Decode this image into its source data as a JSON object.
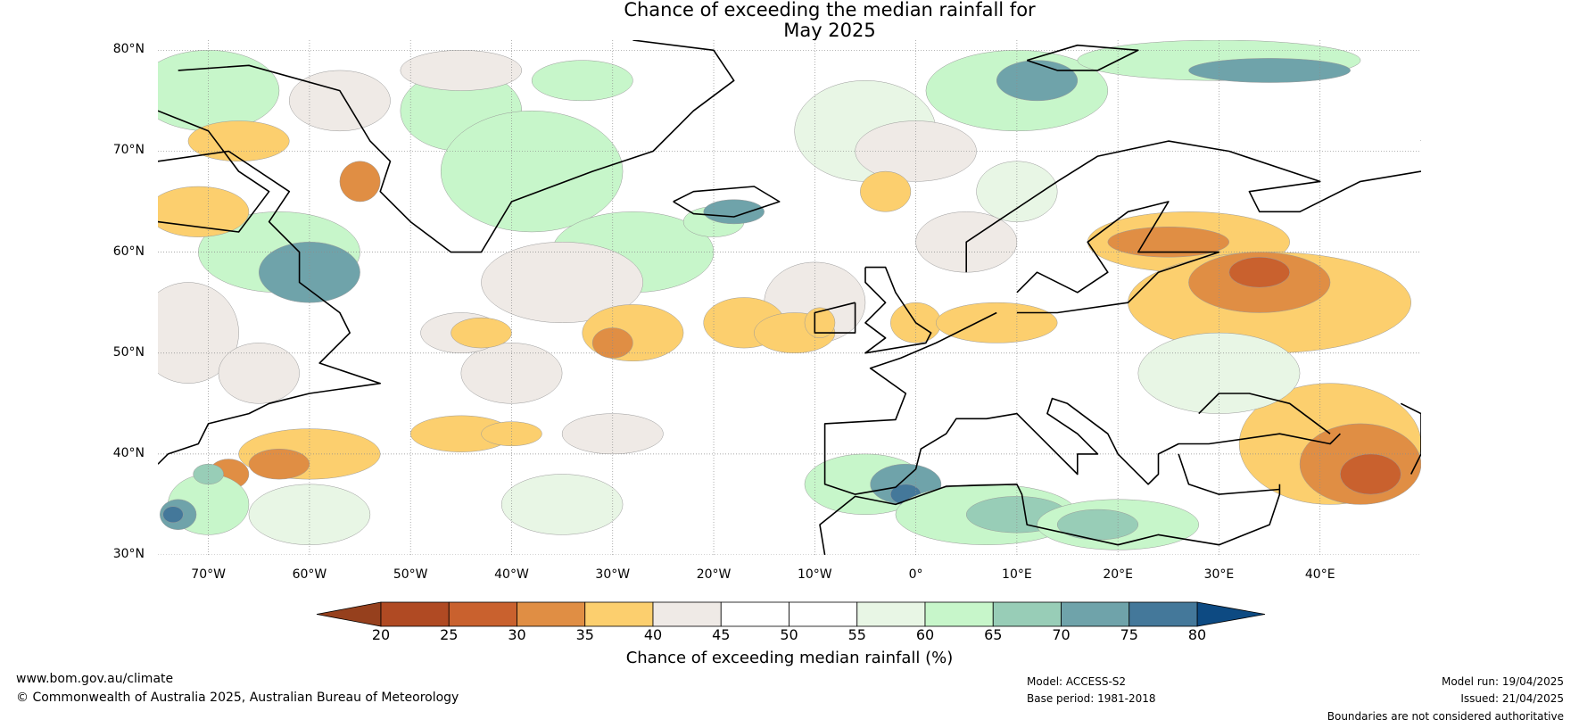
{
  "title_line1": "Chance of exceeding the median rainfall for",
  "title_line2": "May 2025",
  "lat_ticks": [
    {
      "lat": 80,
      "label": "80°N"
    },
    {
      "lat": 70,
      "label": "70°N"
    },
    {
      "lat": 60,
      "label": "60°N"
    },
    {
      "lat": 50,
      "label": "50°N"
    },
    {
      "lat": 40,
      "label": "40°N"
    },
    {
      "lat": 30,
      "label": "30°N"
    }
  ],
  "lon_ticks": [
    {
      "lon": -70,
      "label": "70°W"
    },
    {
      "lon": -60,
      "label": "60°W"
    },
    {
      "lon": -50,
      "label": "50°W"
    },
    {
      "lon": -40,
      "label": "40°W"
    },
    {
      "lon": -30,
      "label": "30°W"
    },
    {
      "lon": -20,
      "label": "20°W"
    },
    {
      "lon": -10,
      "label": "10°W"
    },
    {
      "lon": 0,
      "label": "0°"
    },
    {
      "lon": 10,
      "label": "10°E"
    },
    {
      "lon": 20,
      "label": "20°E"
    },
    {
      "lon": 30,
      "label": "30°E"
    },
    {
      "lon": 40,
      "label": "40°E"
    }
  ],
  "colorbar": {
    "title": "Chance of exceeding median rainfall (%)",
    "ticks": [
      "20",
      "25",
      "30",
      "35",
      "40",
      "45",
      "50",
      "55",
      "60",
      "65",
      "70",
      "75",
      "80"
    ],
    "under_color": "#96401d",
    "over_color": "#0d4a82",
    "colors": [
      "#b04a23",
      "#c9612e",
      "#e08e44",
      "#fccf6e",
      "#efeae6",
      "#ffffff",
      "#ffffff",
      "#e8f6e5",
      "#c7f6ca",
      "#98cdb7",
      "#6fa3aa",
      "#44789a"
    ]
  },
  "footer": {
    "website": "www.bom.gov.au/climate",
    "copyright": "© Commonwealth of Australia 2025, Australian Bureau of Meteorology",
    "model": "Model: ACCESS-S2",
    "base_period": "Base period: 1981-2018",
    "model_run": "Model run: 19/04/2025",
    "issued": "Issued: 21/04/2025",
    "disclaimer": "Boundaries are not considered authoritative"
  },
  "map": {
    "extent": {
      "lon": [
        -75,
        50
      ],
      "lat": [
        30,
        81
      ]
    },
    "background_color": "#ffffff",
    "gridline_color": "#8c8c8c",
    "coastline_color": "#000000",
    "border_color": "#808080"
  }
}
